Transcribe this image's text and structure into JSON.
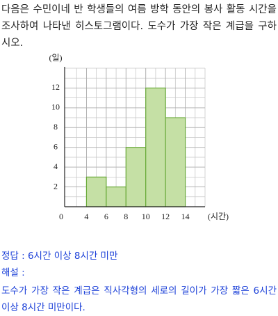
{
  "question": "다음은 수민이네 반 학생들의 여름 방학 동안의 봉사 활동 시간을 조사하여 나타낸 히스토그램이다. 도수가 가장 작은 계급을 구하시오.",
  "chart_data": {
    "type": "histogram",
    "y_label": "(일)",
    "x_label": "(시간)",
    "origin_label": "0",
    "bins": [
      4,
      6,
      8,
      10,
      12,
      14
    ],
    "counts": [
      3,
      2,
      6,
      12,
      9
    ],
    "color": "#c5e0a5",
    "edge_color": "#6aaa3a",
    "xlim": [
      2,
      16
    ],
    "xticks": [
      4,
      6,
      8,
      10,
      12,
      14
    ],
    "ylim": [
      0,
      14
    ],
    "yticks": [
      2,
      4,
      6,
      8,
      10,
      12
    ],
    "grid": true
  },
  "answer": "정답 : 6시간 이상 8시간 미만",
  "explanation_title": "해설 :",
  "explanation": "도수가 가장 작은 계급은 직사각형의 세로의 길이가 가장 짧은 6시간 이상 8시간 미만이다."
}
